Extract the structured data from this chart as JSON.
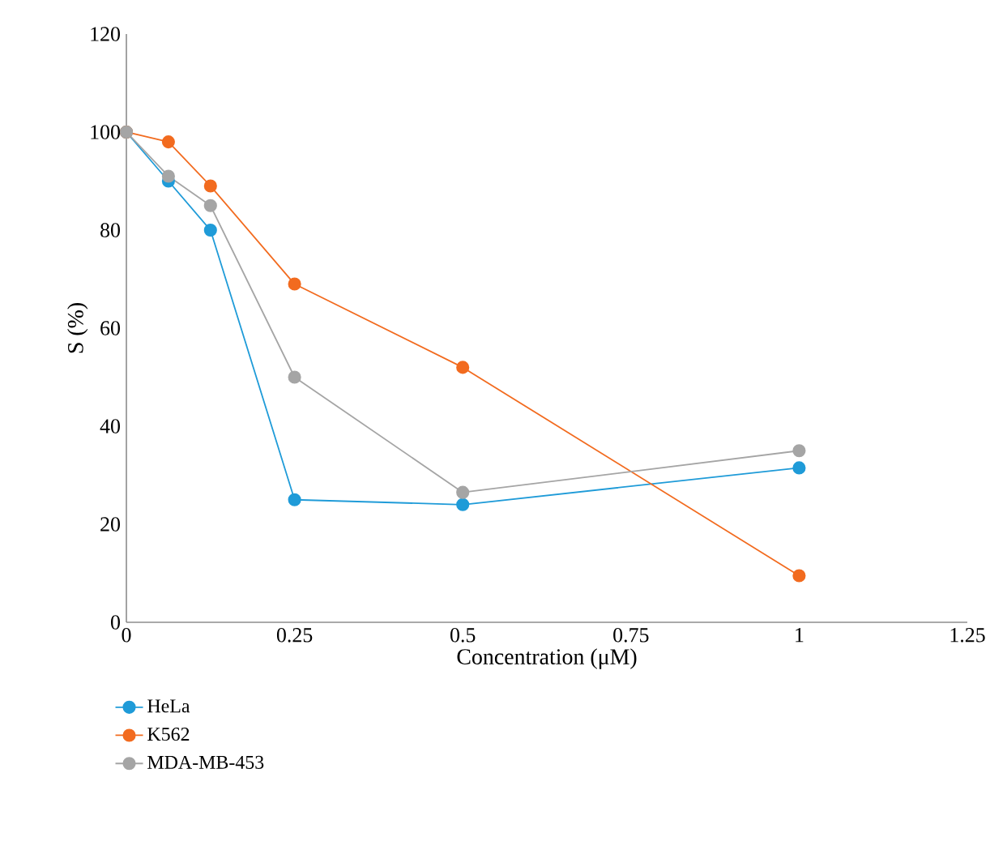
{
  "chart_data": {
    "type": "line",
    "xlabel": "Concentration (μM)",
    "ylabel": "S (%)",
    "x": [
      0,
      0.0625,
      0.125,
      0.25,
      0.5,
      1
    ],
    "series": [
      {
        "name": "HeLa",
        "color": "#1f9bd8",
        "values": [
          100,
          90,
          80,
          25,
          24,
          31.5
        ]
      },
      {
        "name": "K562",
        "color": "#f26b1f",
        "values": [
          100,
          98,
          89,
          69,
          52,
          9.5
        ]
      },
      {
        "name": "MDA-MB-453",
        "color": "#a5a5a5",
        "values": [
          100,
          91,
          85,
          50,
          26.5,
          35
        ]
      }
    ],
    "xlim": [
      0,
      1.25
    ],
    "ylim": [
      0,
      120
    ],
    "xticks": [
      0,
      0.25,
      0.5,
      0.75,
      1,
      1.25
    ],
    "yticks": [
      0,
      20,
      40,
      60,
      80,
      100,
      120
    ],
    "legend": "bottom",
    "marker": "circle",
    "line_style": "solid"
  }
}
